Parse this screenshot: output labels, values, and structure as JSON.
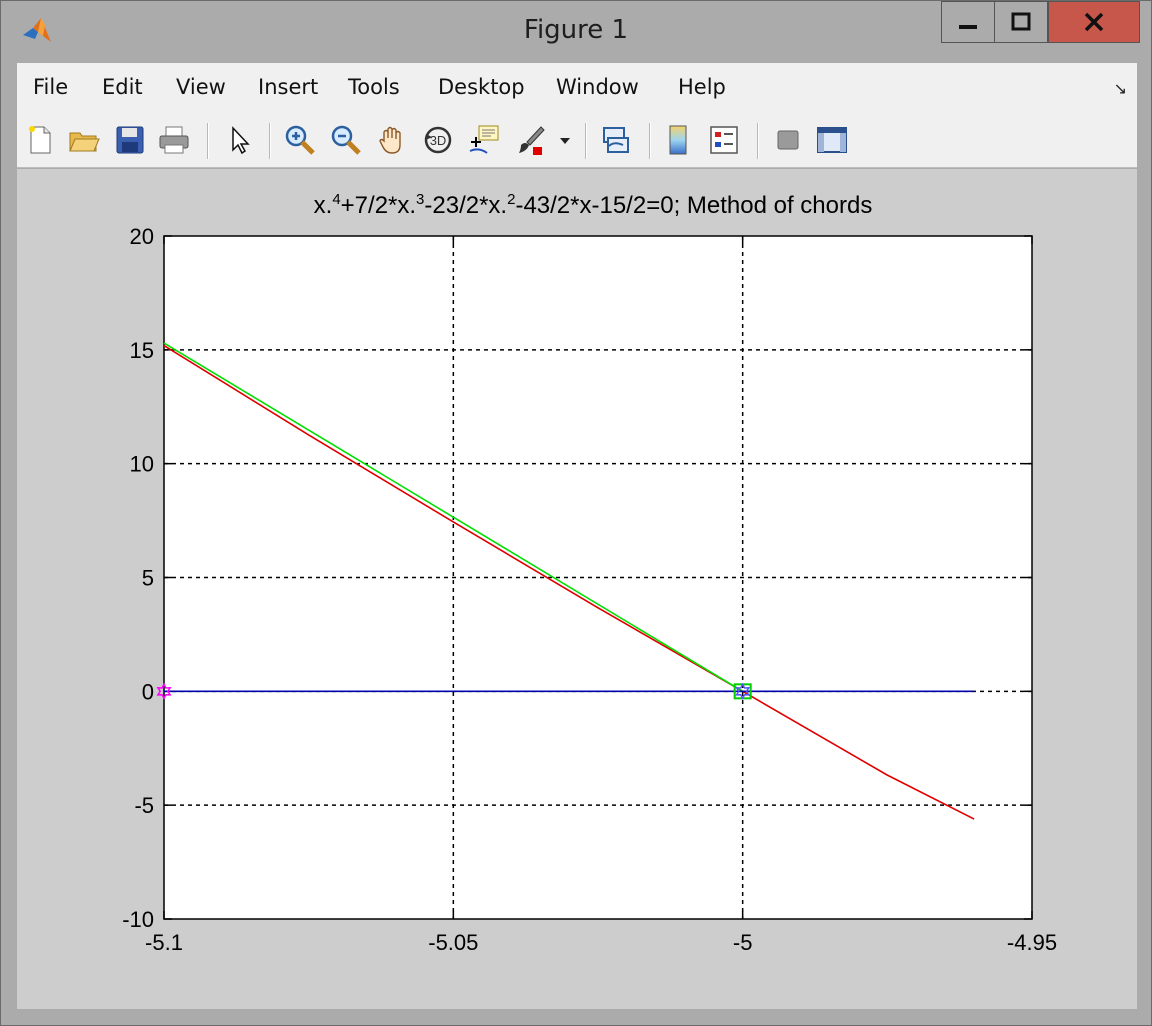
{
  "window": {
    "title": "Figure 1",
    "min_glyph": "—",
    "max_glyph": "☐",
    "close_glyph": "✕"
  },
  "menu": {
    "items": [
      "File",
      "Edit",
      "View",
      "Insert",
      "Tools",
      "Desktop",
      "Window",
      "Help"
    ],
    "dock_arrow": "↘"
  },
  "toolbar": {
    "icons": [
      "new-figure-icon",
      "open-file-icon",
      "save-icon",
      "print-icon",
      "edit-plot-icon",
      "zoom-in-icon",
      "zoom-out-icon",
      "pan-icon",
      "rotate-3d-icon",
      "data-cursor-icon",
      "brush-icon",
      "brush-dropdown-icon",
      "link-plot-icon",
      "insert-colorbar-icon",
      "insert-legend-icon",
      "hide-plot-tools-icon",
      "show-plot-tools-icon"
    ]
  },
  "chart_data": {
    "type": "line",
    "title": "x.^4+7/2*x.^3-23/2*x.^2-43/2*x-15/2=0;   Method of chords",
    "title_parts": {
      "p1": "x.",
      "s1": "4",
      "p2": "+7/2*x.",
      "s2": "3",
      "p3": "-23/2*x.",
      "s3": "2",
      "p4": "-43/2*x-15/2=0;   Method of chords"
    },
    "xlim": [
      -5.1,
      -4.95
    ],
    "ylim": [
      -10,
      20
    ],
    "xticks": [
      -5.1,
      -5.05,
      -5,
      -4.95
    ],
    "xtick_labels": [
      "-5.1",
      "-5.05",
      "-5",
      "-4.95"
    ],
    "yticks": [
      -10,
      -5,
      0,
      5,
      10,
      15,
      20
    ],
    "ytick_labels": [
      "-10",
      "-5",
      "0",
      "5",
      "10",
      "15",
      "20"
    ],
    "grid": true,
    "colors": {
      "function": "#e00000",
      "chord": "#00e000",
      "axis": "#0000aa",
      "marker_start": "#ff00ff",
      "marker_root": "#00cc00"
    },
    "series": [
      {
        "color": "#e00000",
        "x": [
          -5.1,
          -5.075,
          -5.05,
          -5.025,
          -5.0,
          -4.975,
          -4.96
        ],
        "y": [
          15.19,
          11.26,
          7.44,
          3.67,
          0.0,
          -3.68,
          -5.61
        ]
      },
      {
        "color": "#00e000",
        "x": [
          -5.1,
          -5.0
        ],
        "y": [
          15.3,
          0.0
        ]
      },
      {
        "color": "#0000aa",
        "x": [
          -5.1,
          -4.96
        ],
        "y": [
          0,
          0
        ]
      }
    ],
    "markers": [
      {
        "shape": "hexagram",
        "color": "#ff00ff",
        "x": -5.1,
        "y": 0
      },
      {
        "shape": "square",
        "color": "#00cc00",
        "x": -5.0,
        "y": 0
      },
      {
        "shape": "hexagram",
        "color": "#5555ff",
        "x": -5.0,
        "y": 0
      }
    ]
  }
}
